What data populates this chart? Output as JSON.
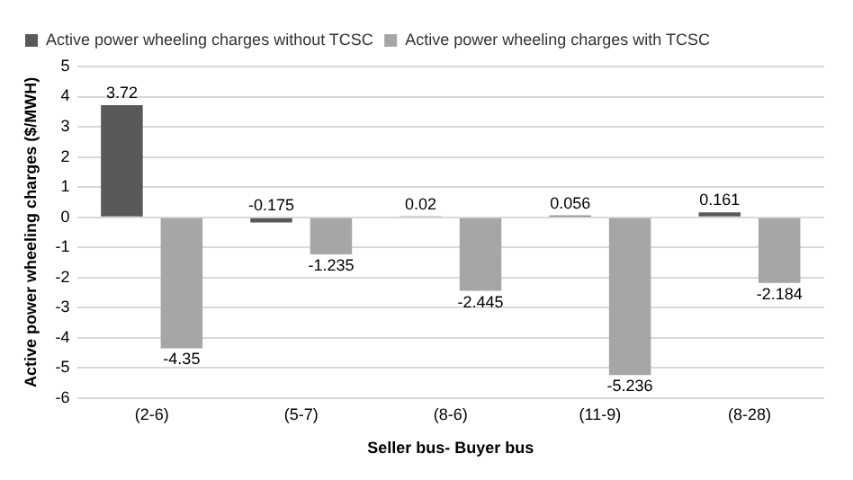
{
  "chart_data": {
    "type": "bar",
    "xlabel": "Seller bus- Buyer bus",
    "ylabel": "Active power wheeling charges ($/MWH)",
    "categories": [
      "(2-6)",
      "(5-7)",
      "(8-6)",
      "(11-9)",
      "(8-28)"
    ],
    "series": [
      {
        "name": "Active power wheeling charges without TCSC",
        "color": "#595959",
        "values": [
          3.72,
          -0.175,
          0.02,
          0.056,
          0.161
        ]
      },
      {
        "name": "Active power wheeling charges with TCSC",
        "color": "#a6a6a6",
        "values": [
          -4.35,
          -1.235,
          -2.445,
          -5.236,
          -2.184
        ]
      }
    ],
    "ylim": [
      -6,
      5
    ],
    "yticks": [
      -6,
      -5,
      -4,
      -3,
      -2,
      -1,
      0,
      1,
      2,
      3,
      4,
      5
    ],
    "grid": "y",
    "legend": "top left",
    "data_labels": true
  }
}
